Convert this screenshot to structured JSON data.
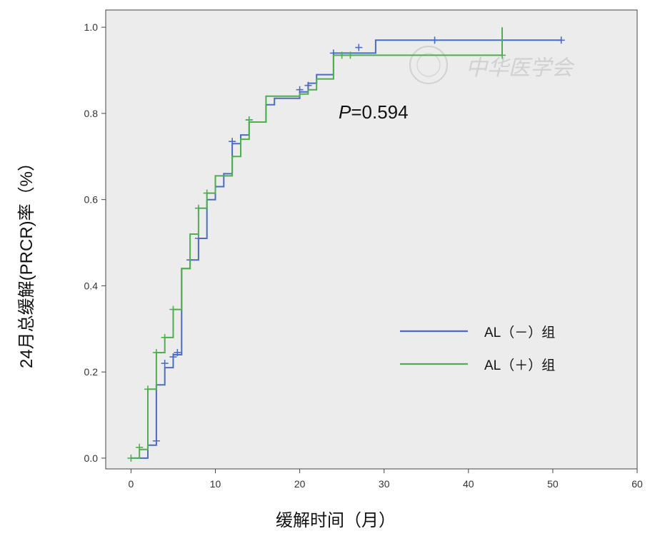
{
  "chart_data": {
    "type": "line",
    "subtype": "kaplan-meier-step",
    "title": "",
    "xlabel": "缓解时间（月）",
    "ylabel": "24月总缓解(PRCR)率（%）",
    "xlim": [
      -3,
      60
    ],
    "ylim": [
      -0.025,
      1.04
    ],
    "x_ticks": [
      0,
      10,
      20,
      30,
      40,
      50,
      60
    ],
    "x_tick_labels": [
      "0",
      "10",
      "20",
      "30",
      "40",
      "50",
      "60"
    ],
    "y_ticks": [
      0.0,
      0.2,
      0.4,
      0.6,
      0.8,
      1.0
    ],
    "y_tick_labels": [
      "0.0",
      "0.2",
      "0.4",
      "0.6",
      "0.8",
      "1.0"
    ],
    "grid": false,
    "background": "#ececec",
    "legend_position": "right-lower",
    "annotation": {
      "prefix": "P",
      "text": "=0.594"
    },
    "watermark": "中华医学会",
    "series": [
      {
        "name": "AL（－）组",
        "color": "#4a6cc4",
        "steps": [
          [
            0,
            0.0
          ],
          [
            2,
            0.03
          ],
          [
            3,
            0.17
          ],
          [
            4,
            0.21
          ],
          [
            5,
            0.24
          ],
          [
            6,
            0.44
          ],
          [
            7,
            0.46
          ],
          [
            8,
            0.51
          ],
          [
            9,
            0.6
          ],
          [
            10,
            0.63
          ],
          [
            11,
            0.66
          ],
          [
            12,
            0.73
          ],
          [
            13,
            0.75
          ],
          [
            14,
            0.78
          ],
          [
            16,
            0.82
          ],
          [
            17,
            0.835
          ],
          [
            20,
            0.85
          ],
          [
            21,
            0.87
          ],
          [
            22,
            0.89
          ],
          [
            24,
            0.94
          ],
          [
            29,
            0.97
          ],
          [
            51,
            0.97
          ]
        ],
        "censored": [
          [
            3,
            0.04
          ],
          [
            4,
            0.22
          ],
          [
            5,
            0.235
          ],
          [
            5.5,
            0.245
          ],
          [
            7,
            0.46
          ],
          [
            8,
            0.51
          ],
          [
            12,
            0.735
          ],
          [
            14,
            0.785
          ],
          [
            20,
            0.855
          ],
          [
            21,
            0.865
          ],
          [
            24,
            0.94
          ],
          [
            27,
            0.953
          ],
          [
            36,
            0.97
          ],
          [
            51,
            0.97
          ]
        ]
      },
      {
        "name": "AL（＋）组",
        "color": "#4cb04c",
        "steps": [
          [
            0,
            0.0
          ],
          [
            1,
            0.02
          ],
          [
            2,
            0.16
          ],
          [
            3,
            0.245
          ],
          [
            4,
            0.28
          ],
          [
            5,
            0.345
          ],
          [
            6,
            0.44
          ],
          [
            7,
            0.52
          ],
          [
            8,
            0.58
          ],
          [
            9,
            0.615
          ],
          [
            10,
            0.655
          ],
          [
            12,
            0.7
          ],
          [
            13,
            0.74
          ],
          [
            14,
            0.78
          ],
          [
            16,
            0.84
          ],
          [
            20,
            0.845
          ],
          [
            21,
            0.855
          ],
          [
            22,
            0.88
          ],
          [
            24,
            0.935
          ],
          [
            44,
            1.0
          ]
        ],
        "censored": [
          [
            0,
            0.0
          ],
          [
            1,
            0.025
          ],
          [
            2,
            0.16
          ],
          [
            3,
            0.245
          ],
          [
            4,
            0.28
          ],
          [
            5,
            0.345
          ],
          [
            8,
            0.58
          ],
          [
            9,
            0.615
          ],
          [
            14,
            0.785
          ],
          [
            25,
            0.935
          ],
          [
            26,
            0.935
          ],
          [
            44,
            0.935
          ]
        ]
      }
    ]
  }
}
